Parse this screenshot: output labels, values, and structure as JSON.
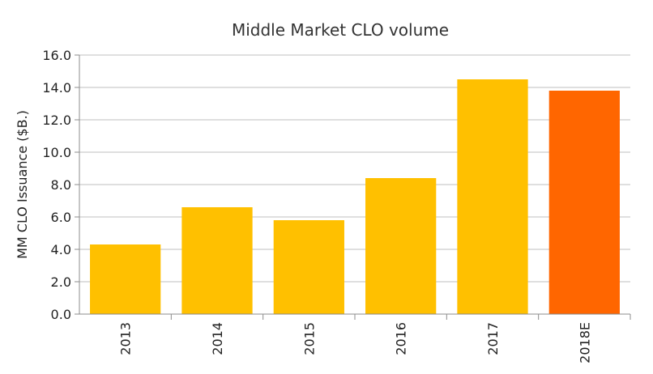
{
  "chart_data": {
    "type": "bar",
    "title": "Middle Market CLO volume",
    "xlabel": "",
    "ylabel": "MM CLO Issuance ($B.)",
    "categories": [
      "2013",
      "2014",
      "2015",
      "2016",
      "2017",
      "2018E"
    ],
    "values": [
      4.3,
      6.6,
      5.8,
      8.4,
      14.5,
      13.8
    ],
    "ylim": [
      0,
      16
    ],
    "yticks": [
      "0.0",
      "2.0",
      "4.0",
      "6.0",
      "8.0",
      "10.0",
      "12.0",
      "14.0",
      "16.0"
    ],
    "grid": true,
    "legend": "none",
    "colors": {
      "actual": "#FFC000",
      "estimate": "#FF6600"
    }
  }
}
